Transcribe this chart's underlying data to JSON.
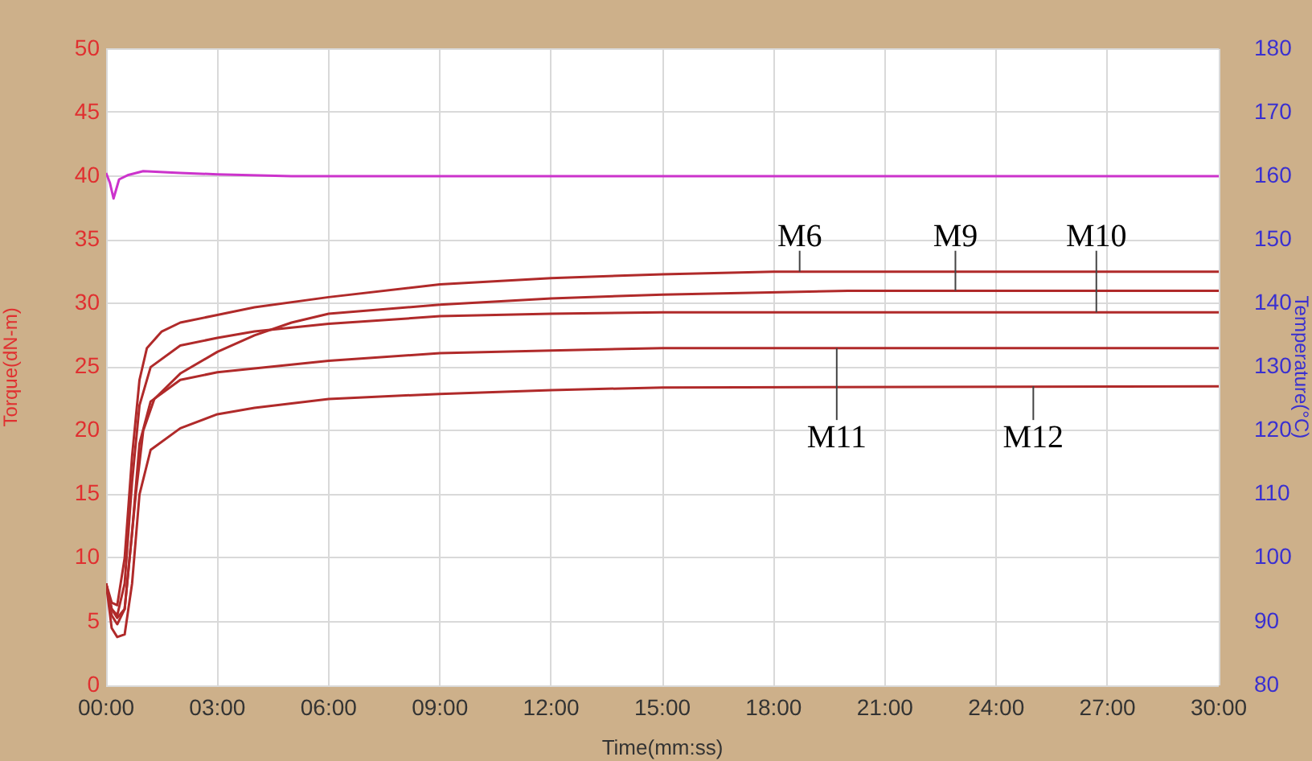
{
  "chart_data": {
    "type": "line",
    "xlabel": "Time(mm:ss)",
    "ylabel": "Torque(dN-m)",
    "y2label": "Temperature(°C)",
    "xlim": [
      0,
      30
    ],
    "xticks": [
      {
        "value": 0,
        "label": "00:00"
      },
      {
        "value": 3,
        "label": "03:00"
      },
      {
        "value": 6,
        "label": "06:00"
      },
      {
        "value": 9,
        "label": "09:00"
      },
      {
        "value": 12,
        "label": "12:00"
      },
      {
        "value": 15,
        "label": "15:00"
      },
      {
        "value": 18,
        "label": "18:00"
      },
      {
        "value": 21,
        "label": "21:00"
      },
      {
        "value": 24,
        "label": "24:00"
      },
      {
        "value": 27,
        "label": "27:00"
      },
      {
        "value": 30,
        "label": "30:00"
      }
    ],
    "ylim": [
      0,
      50
    ],
    "yticks": [
      0,
      5,
      10,
      15,
      20,
      25,
      30,
      35,
      40,
      45,
      50
    ],
    "y2lim": [
      80,
      180
    ],
    "y2ticks": [
      80,
      90,
      100,
      110,
      120,
      130,
      140,
      150,
      160,
      170,
      180
    ],
    "grid": true,
    "legend": false,
    "marker": "none",
    "line_style": "solid",
    "series": [
      {
        "color": "#b02a2a",
        "x": [
          0,
          0.15,
          0.3,
          0.5,
          0.7,
          0.9,
          1.1,
          1.5,
          2,
          3,
          4,
          6,
          9,
          12,
          15,
          18,
          30
        ],
        "values": [
          8,
          6.5,
          6.3,
          10,
          18,
          24,
          26.5,
          27.8,
          28.5,
          29.1,
          29.7,
          30.5,
          31.5,
          32,
          32.3,
          32.5,
          32.5
        ]
      },
      {
        "color": "#b02a2a",
        "x": [
          0,
          0.15,
          0.3,
          0.5,
          0.8,
          1,
          1.3,
          2,
          3,
          4,
          5,
          6,
          9,
          12,
          15,
          20,
          30
        ],
        "values": [
          8,
          6,
          5.3,
          6,
          15,
          20,
          22.5,
          24.5,
          26.2,
          27.5,
          28.5,
          29.2,
          29.9,
          30.4,
          30.7,
          31,
          31
        ]
      },
      {
        "color": "#b02a2a",
        "x": [
          0,
          0.15,
          0.3,
          0.5,
          0.7,
          0.9,
          1.2,
          2,
          3,
          4,
          6,
          9,
          12,
          15,
          30
        ],
        "values": [
          8,
          6,
          5.5,
          8,
          16,
          22,
          25,
          26.7,
          27.3,
          27.8,
          28.4,
          29,
          29.2,
          29.3,
          29.3
        ]
      },
      {
        "color": "#b02a2a",
        "x": [
          0,
          0.15,
          0.3,
          0.5,
          0.7,
          0.9,
          1.2,
          2,
          3,
          6,
          9,
          12,
          15,
          30
        ],
        "values": [
          8,
          5.5,
          4.8,
          6,
          12,
          19,
          22.3,
          24,
          24.6,
          25.5,
          26.1,
          26.3,
          26.5,
          26.5
        ]
      },
      {
        "color": "#b02a2a",
        "x": [
          0,
          0.15,
          0.3,
          0.5,
          0.7,
          0.9,
          1.2,
          2,
          3,
          4,
          6,
          9,
          12,
          15,
          30
        ],
        "values": [
          8,
          4.5,
          3.8,
          4,
          8,
          15,
          18.5,
          20.2,
          21.3,
          21.8,
          22.5,
          22.9,
          23.2,
          23.4,
          23.5
        ]
      },
      {
        "color": "#cc33cc",
        "axis": "y2",
        "x": [
          0,
          0.1,
          0.2,
          0.35,
          0.6,
          1,
          2,
          3,
          5,
          20,
          30
        ],
        "values": [
          160.5,
          159,
          156.5,
          159.5,
          160.2,
          160.8,
          160.5,
          160.3,
          160,
          160,
          160
        ]
      }
    ],
    "annotations": [
      {
        "text": "M6",
        "x": 18.7,
        "y": 32.5
      },
      {
        "text": "M9",
        "x": 22.9,
        "y": 31
      },
      {
        "text": "M10",
        "x": 26.7,
        "y": 29.3
      },
      {
        "text": "M11",
        "x": 19.7,
        "y": 26.5
      },
      {
        "text": "M12",
        "x": 25,
        "y": 23.5
      }
    ]
  }
}
